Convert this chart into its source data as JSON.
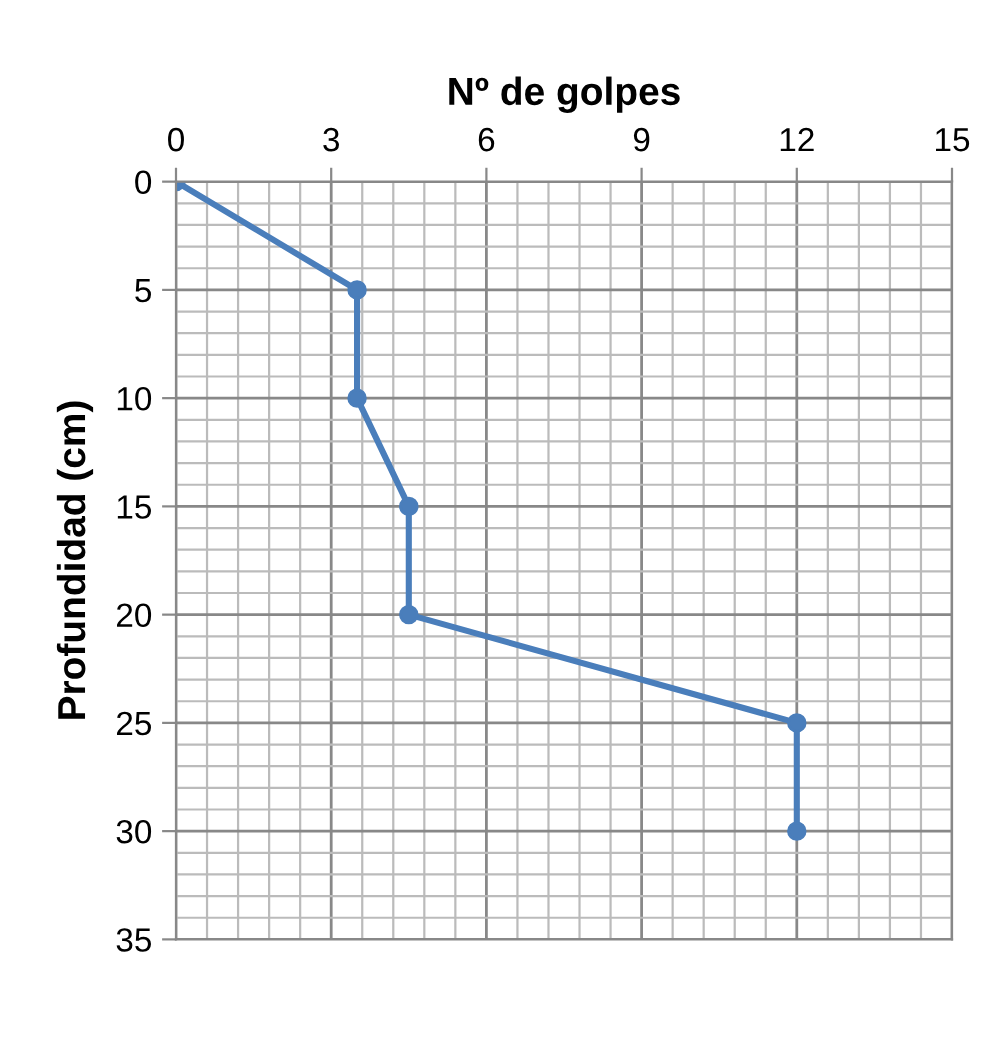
{
  "chart_data": {
    "type": "line",
    "xlabel": "Nº de golpes",
    "ylabel": "Profundidad (cm)",
    "series": [
      {
        "color": "#4a7ebb",
        "x": [
          0,
          3.5,
          3.5,
          4.5,
          4.5,
          12,
          12
        ],
        "values": [
          0,
          5,
          10,
          15,
          20,
          25,
          30
        ]
      }
    ],
    "xlim": [
      0,
      15
    ],
    "ylim": [
      35,
      0
    ],
    "xticks": [
      0,
      {
        "value": 0.6,
        "label": null
      },
      {
        "value": 1.2,
        "label": null
      },
      {
        "value": 1.8,
        "label": null
      },
      {
        "value": 2.4,
        "label": null
      },
      3,
      {
        "value": 3.6,
        "label": null
      },
      {
        "value": 4.2,
        "label": null
      },
      {
        "value": 4.8,
        "label": null
      },
      {
        "value": 5.4,
        "label": null
      },
      6,
      {
        "value": 6.6,
        "label": null
      },
      {
        "value": 7.2,
        "label": null
      },
      {
        "value": 7.8,
        "label": null
      },
      {
        "value": 8.4,
        "label": null
      },
      9,
      {
        "value": 9.6,
        "label": null
      },
      {
        "value": 10.2,
        "label": null
      },
      {
        "value": 10.8,
        "label": null
      },
      {
        "value": 11.4,
        "label": null
      },
      12,
      {
        "value": 12.6,
        "label": null
      },
      {
        "value": 13.2,
        "label": null
      },
      {
        "value": 13.8,
        "label": null
      },
      {
        "value": 14.4,
        "label": null
      },
      15
    ],
    "yticks": [
      0,
      {
        "value": 1,
        "label": null
      },
      {
        "value": 2,
        "label": null
      },
      {
        "value": 3,
        "label": null
      },
      {
        "value": 4,
        "label": null
      },
      5,
      {
        "value": 6,
        "label": null
      },
      {
        "value": 7,
        "label": null
      },
      {
        "value": 8,
        "label": null
      },
      {
        "value": 9,
        "label": null
      },
      10,
      {
        "value": 11,
        "label": null
      },
      {
        "value": 12,
        "label": null
      },
      {
        "value": 13,
        "label": null
      },
      {
        "value": 14,
        "label": null
      },
      15,
      {
        "value": 16,
        "label": null
      },
      {
        "value": 17,
        "label": null
      },
      {
        "value": 18,
        "label": null
      },
      {
        "value": 19,
        "label": null
      },
      20,
      {
        "value": 21,
        "label": null
      },
      {
        "value": 22,
        "label": null
      },
      {
        "value": 23,
        "label": null
      },
      {
        "value": 24,
        "label": null
      },
      25,
      {
        "value": 26,
        "label": null
      },
      {
        "value": 27,
        "label": null
      },
      {
        "value": 28,
        "label": null
      },
      {
        "value": 29,
        "label": null
      },
      30,
      {
        "value": 31,
        "label": null
      },
      {
        "value": 32,
        "label": null
      },
      {
        "value": 33,
        "label": null
      },
      {
        "value": 34,
        "label": null
      },
      35
    ],
    "grid": true,
    "marker": "circle",
    "line_style": "solid"
  }
}
